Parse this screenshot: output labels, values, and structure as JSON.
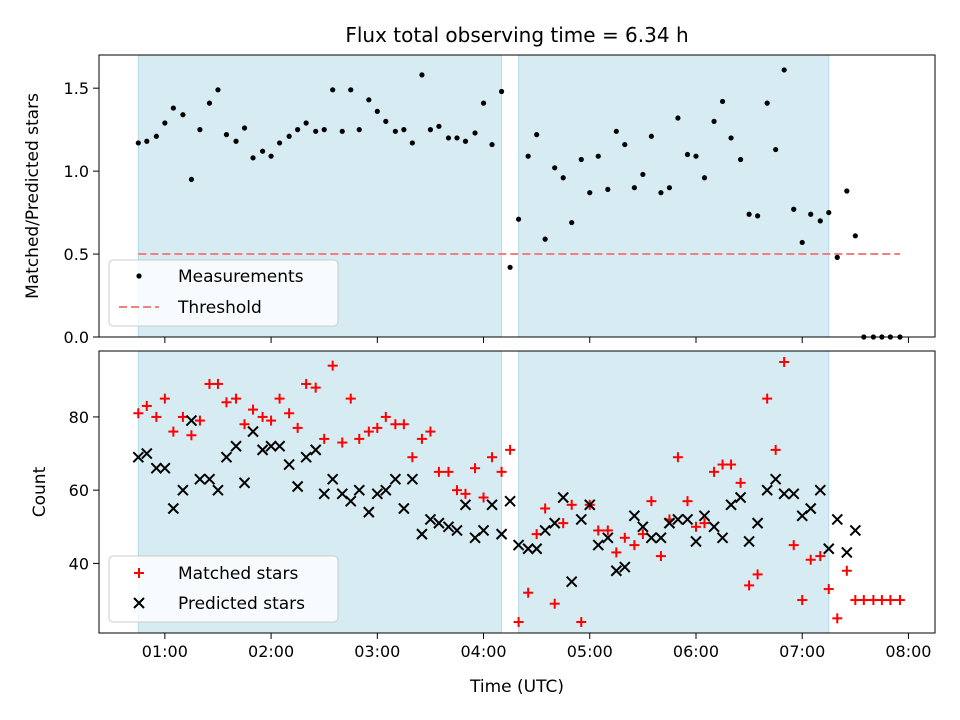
{
  "chart_data": [
    {
      "type": "scatter",
      "title": "Flux total observing time = 6.34 h",
      "xlabel": "",
      "ylabel": "Matched/Predicted stars",
      "xlim": [
        0.38,
        8.25
      ],
      "ylim": [
        0.0,
        1.7
      ],
      "yticks": [
        0.0,
        0.5,
        1.0,
        1.5
      ],
      "ytick_labels": [
        "0.0",
        "0.5",
        "1.0",
        "1.5"
      ],
      "grid": false,
      "legend_position": "lower-left",
      "shaded_spans": [
        [
          0.75,
          4.17
        ],
        [
          4.33,
          7.25
        ]
      ],
      "threshold": {
        "name": "Threshold",
        "value": 0.5,
        "x_range": [
          0.75,
          7.92
        ],
        "color": "#f08080"
      },
      "series": [
        {
          "name": "Measurements",
          "color": "#000000",
          "x": [
            0.75,
            0.83,
            0.92,
            1.0,
            1.08,
            1.17,
            1.25,
            1.33,
            1.42,
            1.5,
            1.58,
            1.67,
            1.75,
            1.83,
            1.92,
            2.0,
            2.08,
            2.17,
            2.25,
            2.33,
            2.42,
            2.5,
            2.58,
            2.67,
            2.75,
            2.83,
            2.92,
            3.0,
            3.08,
            3.17,
            3.25,
            3.33,
            3.42,
            3.5,
            3.58,
            3.67,
            3.75,
            3.83,
            3.92,
            4.0,
            4.08,
            4.17,
            4.25,
            4.33,
            4.42,
            4.5,
            4.58,
            4.67,
            4.75,
            4.83,
            4.92,
            5.0,
            5.08,
            5.17,
            5.25,
            5.33,
            5.42,
            5.5,
            5.58,
            5.67,
            5.75,
            5.83,
            5.92,
            6.0,
            6.08,
            6.17,
            6.25,
            6.33,
            6.42,
            6.5,
            6.58,
            6.67,
            6.75,
            6.83,
            6.92,
            7.0,
            7.08,
            7.17,
            7.25,
            7.33,
            7.42,
            7.5,
            7.58,
            7.67,
            7.75,
            7.83,
            7.92
          ],
          "y": [
            1.17,
            1.18,
            1.21,
            1.29,
            1.38,
            1.34,
            0.95,
            1.25,
            1.41,
            1.49,
            1.22,
            1.18,
            1.26,
            1.08,
            1.12,
            1.09,
            1.17,
            1.21,
            1.25,
            1.29,
            1.24,
            1.25,
            1.49,
            1.24,
            1.49,
            1.25,
            1.43,
            1.36,
            1.3,
            1.24,
            1.25,
            1.17,
            1.58,
            1.25,
            1.27,
            1.2,
            1.2,
            1.18,
            1.23,
            1.41,
            1.16,
            1.48,
            0.42,
            0.71,
            1.09,
            1.22,
            0.59,
            1.02,
            0.96,
            0.69,
            1.07,
            0.87,
            1.09,
            0.89,
            1.24,
            1.16,
            0.9,
            0.98,
            1.21,
            0.87,
            0.9,
            1.32,
            1.1,
            1.09,
            0.96,
            1.3,
            1.42,
            1.2,
            1.07,
            0.74,
            0.73,
            1.41,
            1.13,
            1.61,
            0.77,
            0.57,
            0.74,
            0.7,
            0.75,
            0.48,
            0.88,
            0.61,
            0.0,
            0.0,
            0.0,
            0.0,
            0.0
          ]
        }
      ]
    },
    {
      "type": "scatter",
      "title": "",
      "xlabel": "Time (UTC)",
      "ylabel": "Count",
      "xlim": [
        0.38,
        8.25
      ],
      "ylim": [
        21,
        98
      ],
      "yticks": [
        40,
        60,
        80
      ],
      "ytick_labels": [
        "40",
        "60",
        "80"
      ],
      "xticks": [
        1,
        2,
        3,
        4,
        5,
        6,
        7,
        8
      ],
      "xtick_labels": [
        "01:00",
        "02:00",
        "03:00",
        "04:00",
        "05:00",
        "06:00",
        "07:00",
        "08:00"
      ],
      "grid": false,
      "legend_position": "lower-left",
      "shaded_spans": [
        [
          0.75,
          4.17
        ],
        [
          4.33,
          7.25
        ]
      ],
      "series": [
        {
          "name": "Matched stars",
          "marker": "plus",
          "color": "#ff0000",
          "x": [
            0.75,
            0.83,
            0.92,
            1.0,
            1.08,
            1.17,
            1.25,
            1.33,
            1.42,
            1.5,
            1.58,
            1.67,
            1.75,
            1.83,
            1.92,
            2.0,
            2.08,
            2.17,
            2.25,
            2.33,
            2.42,
            2.5,
            2.58,
            2.67,
            2.75,
            2.83,
            2.92,
            3.0,
            3.08,
            3.17,
            3.25,
            3.33,
            3.42,
            3.5,
            3.58,
            3.67,
            3.75,
            3.83,
            3.92,
            4.0,
            4.08,
            4.17,
            4.25,
            4.33,
            4.42,
            4.5,
            4.58,
            4.67,
            4.75,
            4.83,
            4.92,
            5.0,
            5.08,
            5.17,
            5.25,
            5.33,
            5.42,
            5.5,
            5.58,
            5.67,
            5.75,
            5.83,
            5.92,
            6.0,
            6.08,
            6.17,
            6.25,
            6.33,
            6.42,
            6.5,
            6.58,
            6.67,
            6.75,
            6.83,
            6.92,
            7.0,
            7.08,
            7.17,
            7.25,
            7.33,
            7.42,
            7.5,
            7.58,
            7.67,
            7.75,
            7.83,
            7.92
          ],
          "y": [
            81,
            83,
            80,
            85,
            76,
            80,
            75,
            79,
            89,
            89,
            84,
            85,
            78,
            82,
            80,
            79,
            85,
            81,
            77,
            89,
            88,
            74,
            94,
            73,
            85,
            74,
            76,
            77,
            80,
            78,
            78,
            69,
            74,
            76,
            65,
            65,
            60,
            59,
            66,
            58,
            69,
            65,
            71,
            24,
            32,
            48,
            55,
            29,
            51,
            56,
            24,
            56,
            49,
            49,
            43,
            47,
            45,
            48,
            57,
            42,
            52,
            69,
            57,
            50,
            51,
            65,
            67,
            67,
            62,
            34,
            37,
            85,
            71,
            95,
            45,
            30,
            41,
            42,
            33,
            25,
            38,
            30,
            30,
            30,
            30,
            30,
            30
          ]
        },
        {
          "name": "Predicted stars",
          "marker": "x",
          "color": "#000000",
          "x": [
            0.75,
            0.83,
            0.92,
            1.0,
            1.08,
            1.17,
            1.25,
            1.33,
            1.42,
            1.5,
            1.58,
            1.67,
            1.75,
            1.83,
            1.92,
            2.0,
            2.08,
            2.17,
            2.25,
            2.33,
            2.42,
            2.5,
            2.58,
            2.67,
            2.75,
            2.83,
            2.92,
            3.0,
            3.08,
            3.17,
            3.25,
            3.33,
            3.42,
            3.5,
            3.58,
            3.67,
            3.75,
            3.83,
            3.92,
            4.0,
            4.08,
            4.17,
            4.25,
            4.33,
            4.42,
            4.5,
            4.58,
            4.67,
            4.75,
            4.83,
            4.92,
            5.0,
            5.08,
            5.17,
            5.25,
            5.33,
            5.42,
            5.5,
            5.58,
            5.67,
            5.75,
            5.83,
            5.92,
            6.0,
            6.08,
            6.17,
            6.25,
            6.33,
            6.42,
            6.5,
            6.58,
            6.67,
            6.75,
            6.83,
            6.92,
            7.0,
            7.08,
            7.17,
            7.25,
            7.33,
            7.42,
            7.5
          ],
          "y": [
            69,
            70,
            66,
            66,
            55,
            60,
            79,
            63,
            63,
            60,
            69,
            72,
            62,
            76,
            71,
            72,
            72,
            67,
            61,
            69,
            71,
            59,
            63,
            59,
            57,
            60,
            54,
            59,
            60,
            63,
            55,
            63,
            48,
            52,
            51,
            50,
            49,
            56,
            47,
            49,
            56,
            48,
            57,
            45,
            44,
            44,
            49,
            51,
            58,
            35,
            52,
            56,
            45,
            47,
            38,
            39,
            53,
            50,
            47,
            47,
            51,
            52,
            52,
            46,
            53,
            50,
            47,
            56,
            58,
            46,
            51,
            60,
            63,
            59,
            59,
            53,
            55,
            60,
            44,
            52,
            43,
            49
          ]
        }
      ]
    }
  ]
}
